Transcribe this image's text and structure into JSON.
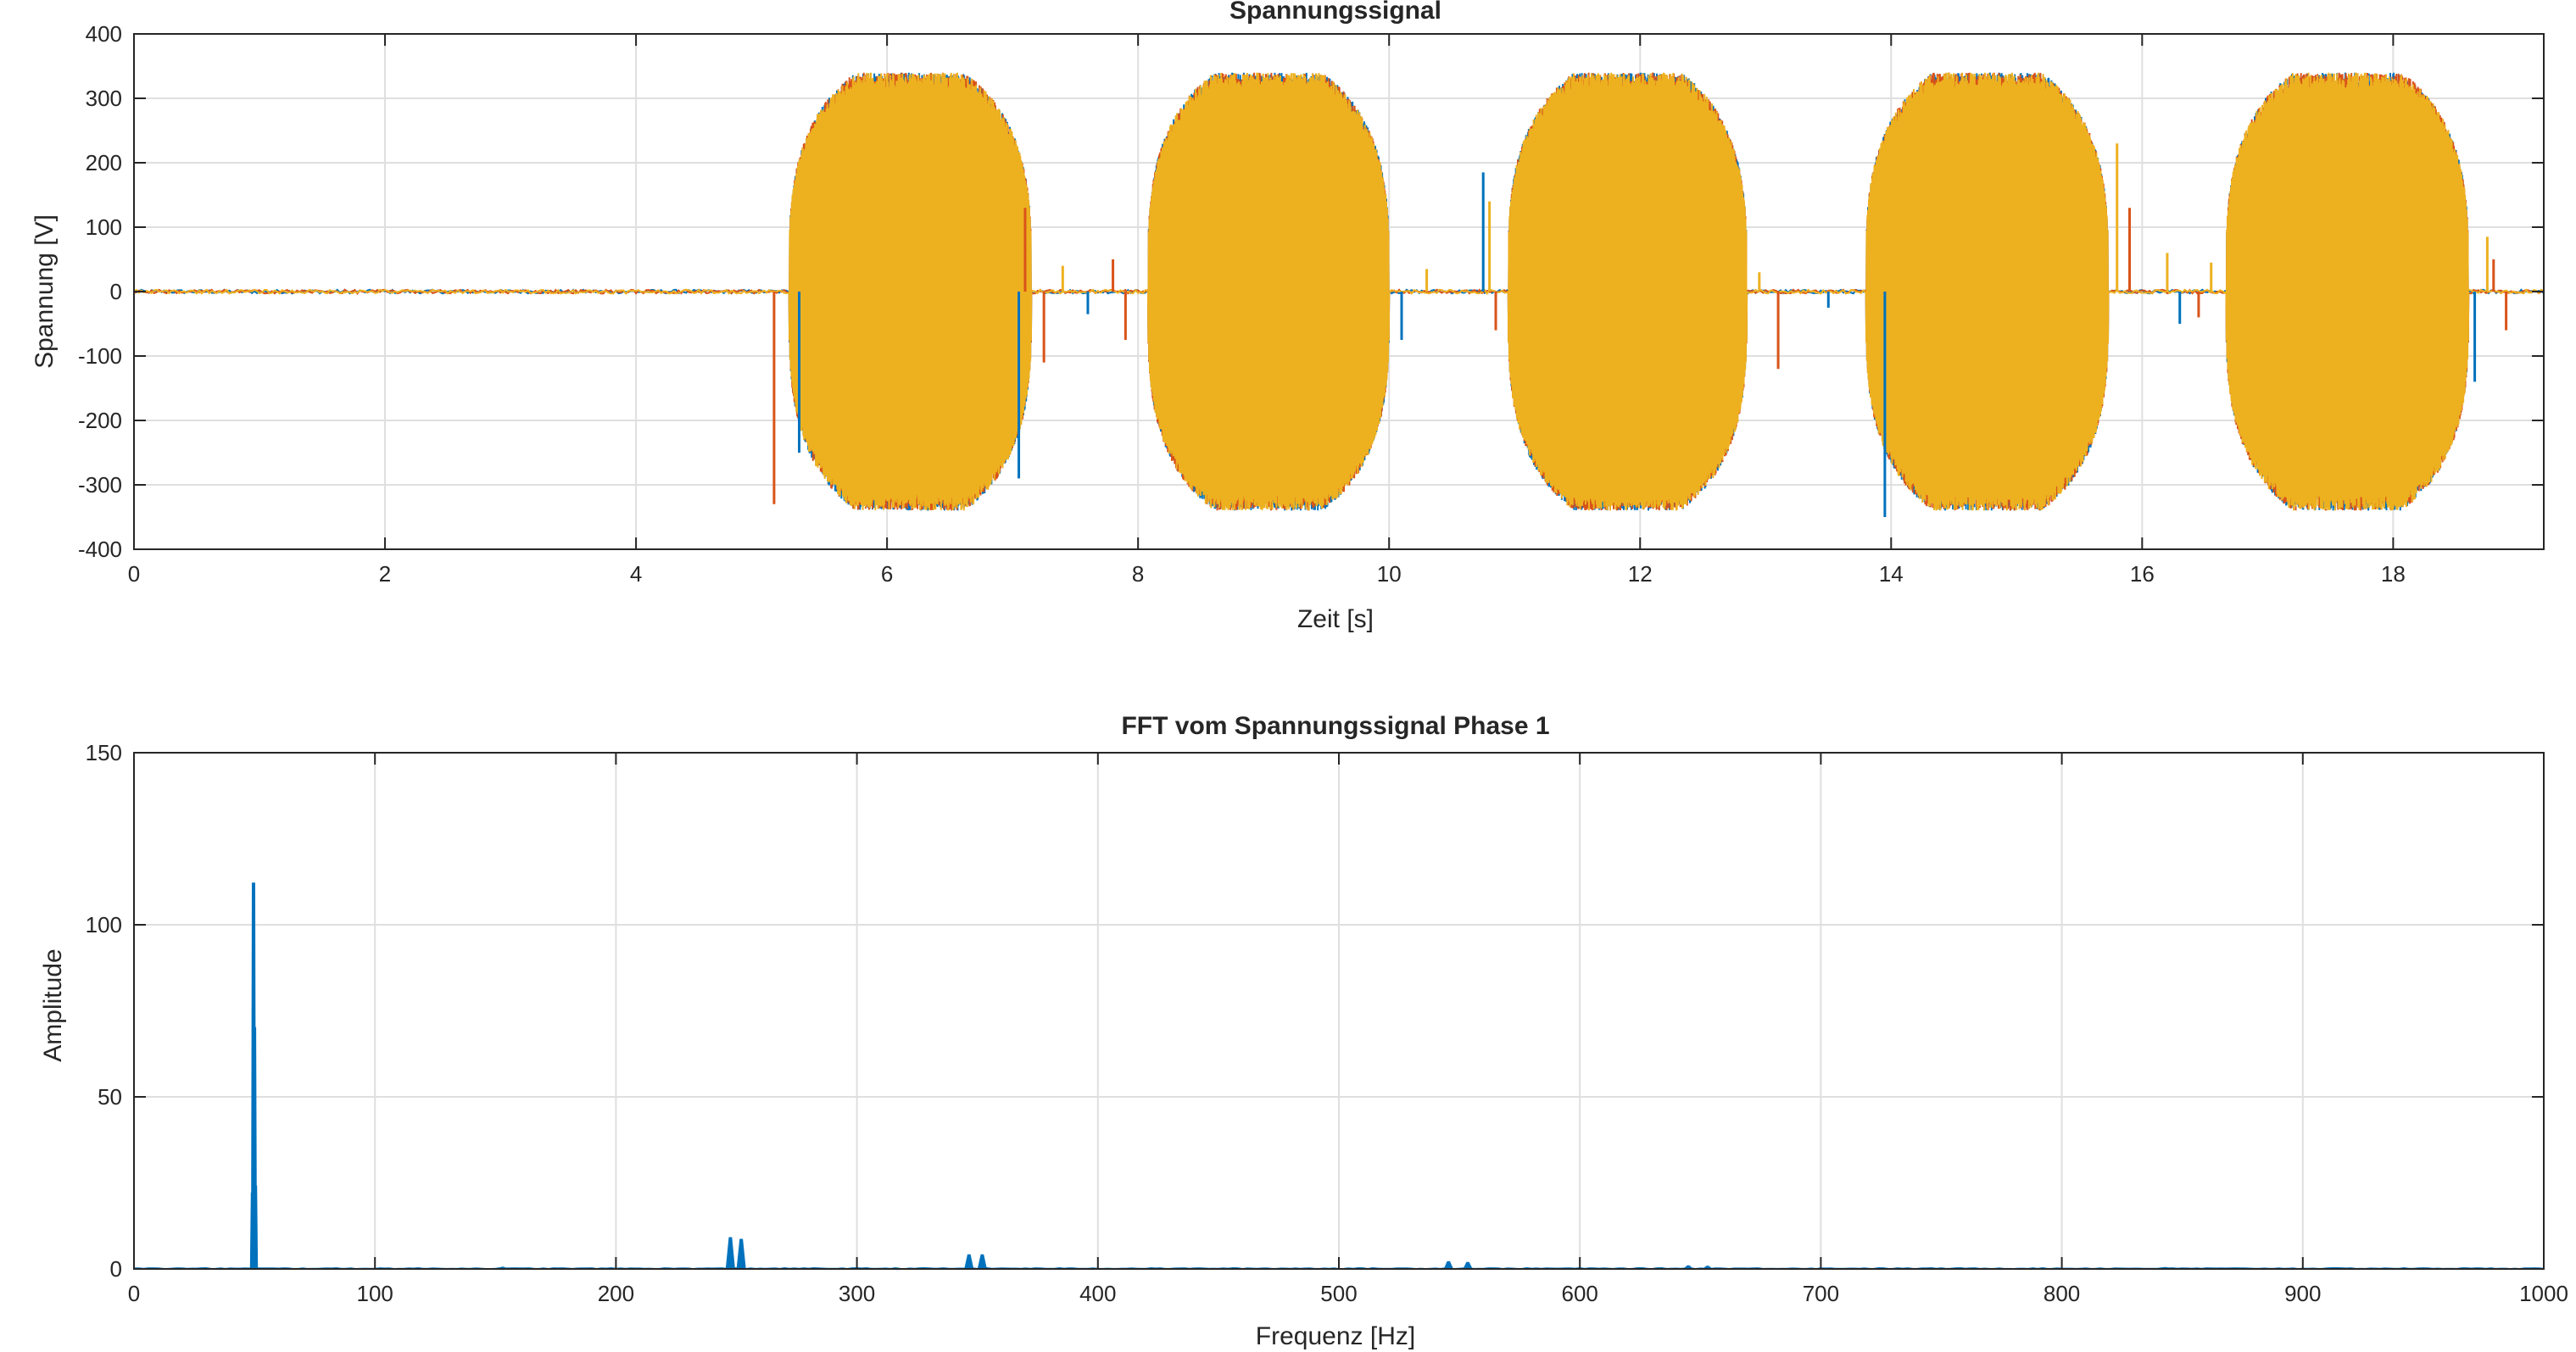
{
  "chart_data": [
    {
      "type": "line",
      "title": "Spannungssignal",
      "xlabel": "Zeit [s]",
      "ylabel": "Spannung [V]",
      "xlim": [
        0,
        19.2
      ],
      "ylim": [
        -400,
        400
      ],
      "xticks": [
        0,
        2,
        4,
        6,
        8,
        10,
        12,
        14,
        16,
        18
      ],
      "yticks": [
        -400,
        -300,
        -200,
        -100,
        0,
        100,
        200,
        300,
        400
      ],
      "grid": true,
      "legend": "none",
      "colors": [
        "#0072BD",
        "#D95319",
        "#EDB120"
      ],
      "series": [
        {
          "color": "#0072BD",
          "bursts": [
            [
              5.22,
              7.15
            ],
            [
              8.08,
              10.0
            ],
            [
              10.95,
              12.85
            ],
            [
              13.8,
              15.73
            ],
            [
              16.67,
              18.6
            ]
          ],
          "amplitude": 340
        },
        {
          "color": "#D95319",
          "bursts": [
            [
              5.22,
              7.15
            ],
            [
              8.08,
              10.0
            ],
            [
              10.95,
              12.85
            ],
            [
              13.8,
              15.73
            ],
            [
              16.67,
              18.6
            ]
          ],
          "amplitude": 340
        },
        {
          "color": "#EDB120",
          "bursts": [
            [
              5.22,
              7.15
            ],
            [
              8.08,
              10.0
            ],
            [
              10.95,
              12.85
            ],
            [
              13.8,
              15.73
            ],
            [
              16.67,
              18.6
            ]
          ],
          "amplitude": 340
        }
      ],
      "spikes": [
        {
          "t": 5.1,
          "v": -330,
          "color": "#D95319"
        },
        {
          "t": 5.3,
          "v": -250,
          "color": "#0072BD"
        },
        {
          "t": 7.05,
          "v": -290,
          "color": "#0072BD"
        },
        {
          "t": 7.1,
          "v": 130,
          "color": "#D95319"
        },
        {
          "t": 7.25,
          "v": -110,
          "color": "#D95319"
        },
        {
          "t": 7.4,
          "v": 40,
          "color": "#EDB120"
        },
        {
          "t": 7.6,
          "v": -35,
          "color": "#0072BD"
        },
        {
          "t": 7.8,
          "v": 50,
          "color": "#D95319"
        },
        {
          "t": 7.9,
          "v": -75,
          "color": "#D95319"
        },
        {
          "t": 10.1,
          "v": -75,
          "color": "#0072BD"
        },
        {
          "t": 10.3,
          "v": 35,
          "color": "#EDB120"
        },
        {
          "t": 10.75,
          "v": 185,
          "color": "#0072BD"
        },
        {
          "t": 10.8,
          "v": 140,
          "color": "#EDB120"
        },
        {
          "t": 10.85,
          "v": -60,
          "color": "#D95319"
        },
        {
          "t": 12.95,
          "v": 30,
          "color": "#EDB120"
        },
        {
          "t": 13.1,
          "v": -120,
          "color": "#D95319"
        },
        {
          "t": 13.5,
          "v": -25,
          "color": "#0072BD"
        },
        {
          "t": 13.95,
          "v": -350,
          "color": "#0072BD"
        },
        {
          "t": 15.8,
          "v": 230,
          "color": "#EDB120"
        },
        {
          "t": 15.9,
          "v": 130,
          "color": "#D95319"
        },
        {
          "t": 16.2,
          "v": 60,
          "color": "#EDB120"
        },
        {
          "t": 16.3,
          "v": -50,
          "color": "#0072BD"
        },
        {
          "t": 16.45,
          "v": -40,
          "color": "#D95319"
        },
        {
          "t": 16.55,
          "v": 45,
          "color": "#EDB120"
        },
        {
          "t": 18.65,
          "v": -140,
          "color": "#0072BD"
        },
        {
          "t": 18.75,
          "v": 85,
          "color": "#EDB120"
        },
        {
          "t": 18.8,
          "v": 50,
          "color": "#D95319"
        },
        {
          "t": 18.9,
          "v": -60,
          "color": "#D95319"
        }
      ]
    },
    {
      "type": "area",
      "title": "FFT vom Spannungssignal Phase 1",
      "xlabel": "Frequenz [Hz]",
      "ylabel": "Amplitude",
      "xlim": [
        0,
        1000
      ],
      "ylim": [
        0,
        150
      ],
      "xticks": [
        0,
        100,
        200,
        300,
        400,
        500,
        600,
        700,
        800,
        900,
        1000
      ],
      "yticks": [
        0,
        50,
        100,
        150
      ],
      "grid": true,
      "legend": "none",
      "colors": [
        "#0072BD"
      ],
      "peaks": [
        {
          "f": 49.6,
          "a": 112
        },
        {
          "f": 50.0,
          "a": 70
        },
        {
          "f": 49.2,
          "a": 22
        },
        {
          "f": 50.4,
          "a": 24
        },
        {
          "f": 247.5,
          "a": 9
        },
        {
          "f": 252.0,
          "a": 8.5
        },
        {
          "f": 346.5,
          "a": 4
        },
        {
          "f": 352.0,
          "a": 4
        },
        {
          "f": 545.5,
          "a": 2
        },
        {
          "f": 553.5,
          "a": 1.8
        },
        {
          "f": 645.0,
          "a": 0.8
        },
        {
          "f": 653.0,
          "a": 0.7
        },
        {
          "f": 153.0,
          "a": 0.4
        },
        {
          "f": 843.0,
          "a": 0.3
        }
      ]
    }
  ]
}
